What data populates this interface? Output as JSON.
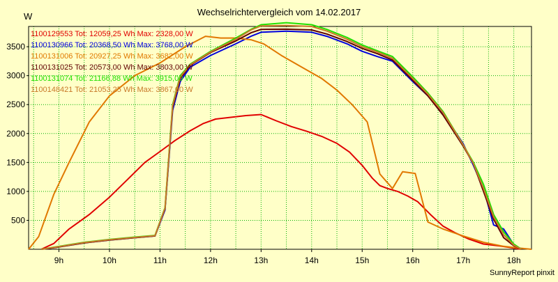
{
  "chart_data": {
    "type": "line",
    "title": "Wechselrichtervergleich vom 14.02.2017",
    "ylabel": "W",
    "xlabel": "",
    "footer": "SunnyReport pinxit",
    "xlim": [
      8.4,
      18.35
    ],
    "ylim": [
      0,
      3850
    ],
    "grid": true,
    "background_color": "#ffffc8",
    "x_ticks": [
      {
        "value": 9,
        "label": "9h"
      },
      {
        "value": 10,
        "label": "10h"
      },
      {
        "value": 11,
        "label": "11h"
      },
      {
        "value": 12,
        "label": "12h"
      },
      {
        "value": 13,
        "label": "13h"
      },
      {
        "value": 14,
        "label": "14h"
      },
      {
        "value": 15,
        "label": "15h"
      },
      {
        "value": 16,
        "label": "16h"
      },
      {
        "value": 17,
        "label": "17h"
      },
      {
        "value": 18,
        "label": "18h"
      }
    ],
    "y_ticks": [
      {
        "value": 500,
        "label": "500"
      },
      {
        "value": 1000,
        "label": "1000"
      },
      {
        "value": 1500,
        "label": "1500"
      },
      {
        "value": 2000,
        "label": "2000"
      },
      {
        "value": 2500,
        "label": "2500"
      },
      {
        "value": 3000,
        "label": "3000"
      },
      {
        "value": 3500,
        "label": "3500"
      }
    ],
    "x_grid": [
      8.5,
      9,
      9.5,
      10,
      10.5,
      11,
      11.5,
      12,
      12.5,
      13,
      13.5,
      14,
      14.5,
      15,
      15.5,
      16,
      16.5,
      17,
      17.5,
      18
    ],
    "y_grid": [
      500,
      1000,
      1500,
      2000,
      2500,
      3000,
      3500
    ],
    "series": [
      {
        "name": "1100129553",
        "legend": "1100129553 Tot: 12059,25 Wh Max: 2328,00 W",
        "color": "#e00000",
        "x": [
          8.65,
          8.9,
          9.2,
          9.6,
          10,
          10.35,
          10.7,
          11.05,
          11.3,
          11.6,
          11.85,
          12.1,
          12.4,
          12.7,
          13,
          13.3,
          13.6,
          13.9,
          14.2,
          14.5,
          14.75,
          15,
          15.2,
          15.35,
          15.5,
          15.7,
          15.9,
          16.1,
          16.35,
          16.6,
          16.85,
          17.1,
          17.4,
          17.7,
          18,
          18.15
        ],
        "values": [
          0,
          100,
          350,
          600,
          900,
          1200,
          1500,
          1720,
          1880,
          2050,
          2170,
          2250,
          2280,
          2310,
          2328,
          2220,
          2120,
          2040,
          1950,
          1830,
          1680,
          1450,
          1230,
          1100,
          1050,
          1000,
          920,
          820,
          600,
          400,
          280,
          180,
          90,
          60,
          20,
          0
        ]
      },
      {
        "name": "1100130966",
        "legend": "1100130966 Tot: 20368,50 Wh Max: 3768,00 W",
        "color": "#0000dd",
        "x": [
          8.65,
          9,
          9.5,
          10,
          10.5,
          10.9,
          11.1,
          11.25,
          11.4,
          11.6,
          12,
          12.5,
          12.8,
          13,
          13.5,
          14,
          14.3,
          14.7,
          15,
          15.3,
          15.6,
          16,
          16.3,
          16.6,
          17,
          17.2,
          17.4,
          17.6,
          17.8,
          18,
          18.15
        ],
        "values": [
          0,
          40,
          110,
          160,
          200,
          230,
          680,
          2400,
          2900,
          3150,
          3350,
          3550,
          3680,
          3750,
          3768,
          3750,
          3680,
          3550,
          3420,
          3330,
          3250,
          2900,
          2650,
          2350,
          1820,
          1450,
          1050,
          420,
          350,
          80,
          0
        ]
      },
      {
        "name": "1100131006",
        "legend": "1100131006 Tot: 20927,25 Wh Max: 3682,00 W",
        "color": "#e07800",
        "x": [
          8.4,
          8.6,
          8.9,
          9.2,
          9.6,
          10,
          10.5,
          11,
          11.5,
          11.9,
          12.2,
          12.5,
          12.8,
          13.05,
          13.4,
          13.8,
          14.2,
          14.5,
          14.8,
          15.1,
          15.35,
          15.6,
          15.8,
          16.05,
          16.3,
          16.6,
          17,
          17.4,
          17.8,
          18.1,
          18.35
        ],
        "values": [
          0,
          220,
          950,
          1500,
          2200,
          2650,
          3000,
          3220,
          3500,
          3680,
          3650,
          3650,
          3620,
          3550,
          3350,
          3150,
          2950,
          2750,
          2500,
          2200,
          1300,
          1050,
          1340,
          1310,
          470,
          350,
          230,
          120,
          50,
          20,
          0
        ]
      },
      {
        "name": "1100131025",
        "legend": "1100131025 Tot: 20573,00 Wh Max: 3803,00 W",
        "color": "#600000",
        "x": [
          8.65,
          9,
          9.5,
          10,
          10.5,
          10.9,
          11.1,
          11.25,
          11.4,
          11.6,
          12,
          12.5,
          12.8,
          13,
          13.5,
          14,
          14.3,
          14.7,
          15,
          15.3,
          15.6,
          16,
          16.3,
          16.6,
          17,
          17.2,
          17.4,
          17.6,
          17.8,
          18,
          18.15
        ],
        "values": [
          0,
          40,
          110,
          160,
          200,
          230,
          700,
          2450,
          2950,
          3180,
          3400,
          3600,
          3740,
          3800,
          3803,
          3790,
          3720,
          3590,
          3470,
          3380,
          3270,
          2920,
          2650,
          2320,
          1780,
          1480,
          1000,
          520,
          200,
          60,
          0
        ]
      },
      {
        "name": "1100131074",
        "legend": "1100131074 Tot: 21166,88 Wh Max: 3915,00 W",
        "color": "#20e000",
        "x": [
          8.65,
          9,
          9.5,
          10,
          10.5,
          10.9,
          11.1,
          11.25,
          11.4,
          11.6,
          12,
          12.5,
          12.8,
          13,
          13.5,
          14,
          14.3,
          14.7,
          15,
          15.3,
          15.6,
          16,
          16.3,
          16.6,
          17,
          17.2,
          17.4,
          17.6,
          17.8,
          18,
          18.15
        ],
        "values": [
          0,
          50,
          120,
          170,
          210,
          240,
          720,
          2500,
          3000,
          3200,
          3420,
          3650,
          3800,
          3880,
          3915,
          3880,
          3800,
          3660,
          3530,
          3430,
          3330,
          2980,
          2700,
          2380,
          1800,
          1500,
          1120,
          600,
          300,
          90,
          0
        ]
      },
      {
        "name": "1100148421",
        "legend": "1100148421 Tot: 21053,25 Wh Max: 3867,00 W",
        "color": "#c87828",
        "x": [
          8.65,
          9,
          9.5,
          10,
          10.5,
          10.9,
          11.1,
          11.25,
          11.4,
          11.6,
          12,
          12.5,
          12.8,
          13,
          13.5,
          14,
          14.3,
          14.7,
          15,
          15.3,
          15.6,
          16,
          16.3,
          16.6,
          17,
          17.2,
          17.4,
          17.6,
          17.8,
          18,
          18.15
        ],
        "values": [
          0,
          45,
          115,
          165,
          205,
          235,
          710,
          2480,
          2980,
          3190,
          3410,
          3630,
          3790,
          3860,
          3867,
          3850,
          3770,
          3630,
          3500,
          3410,
          3300,
          2950,
          2680,
          2360,
          1800,
          1480,
          1050,
          560,
          250,
          70,
          0
        ]
      }
    ]
  }
}
